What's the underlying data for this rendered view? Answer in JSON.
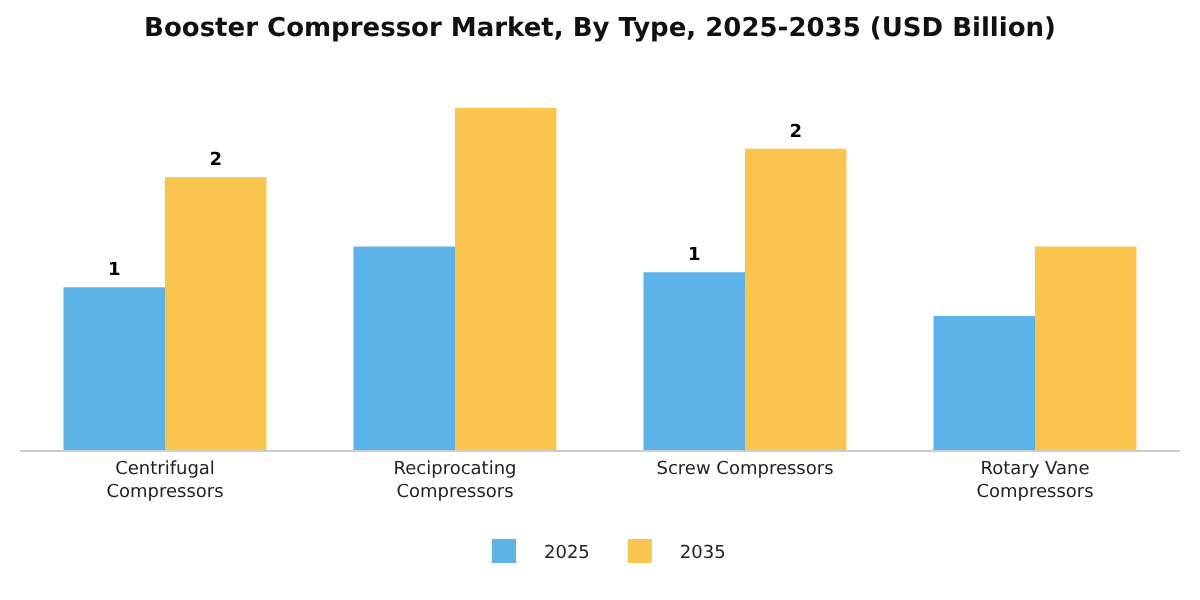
{
  "chart_data": {
    "type": "bar",
    "title": "Booster Compressor Market, By Type, 2025-2035 (USD Billion)",
    "categories": [
      "Centrifugal\nCompressors",
      "Reciprocating\nCompressors",
      "Screw Compressors",
      "Rotary Vane\nCompressors"
    ],
    "series": [
      {
        "name": "2025",
        "color": "#5db3e8",
        "values": [
          1.08,
          1.35,
          1.18,
          0.89
        ],
        "value_labels": [
          "1",
          null,
          "1",
          null
        ]
      },
      {
        "name": "2035",
        "color": "#f9c54e",
        "values": [
          1.81,
          2.27,
          2.0,
          1.35
        ],
        "value_labels": [
          "2",
          null,
          "2",
          null
        ]
      }
    ],
    "legend": "bottom",
    "grid": false,
    "tick_labels": "x"
  }
}
